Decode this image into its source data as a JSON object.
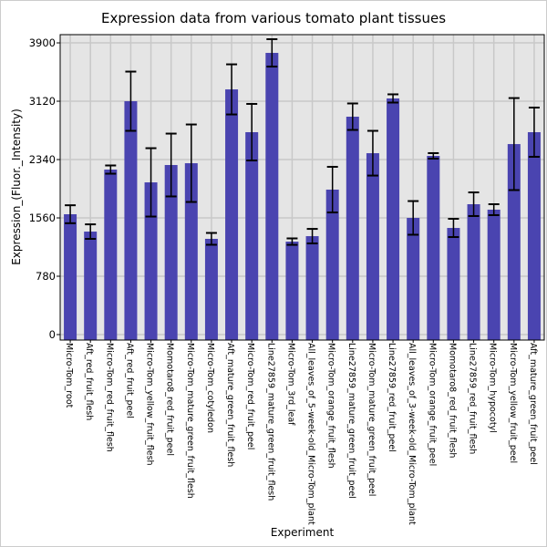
{
  "chart_data": {
    "type": "bar",
    "title": "Expression data from various tomato plant tissues",
    "xlabel": "Experiment",
    "ylabel": "Expression_(Fluor._Intensity)",
    "ylim": [
      -73,
      4010
    ],
    "yticks": [
      0,
      780,
      1560,
      2340,
      3120,
      3900
    ],
    "ytick_labels": [
      "0",
      "780",
      "1560",
      "2340",
      "3120",
      "3900"
    ],
    "grid": true,
    "bar_color": "#4a44b0",
    "background_color": "#e5e5e5",
    "categories": [
      "Micro-Tom_root",
      "Aft_red_fruit_flesh",
      "Micro-Tom_red_fruit_flesh",
      "Aft_red_fruit_peel",
      "Micro-Tom_yellow_fruit_flesh",
      "Momotaro8_red_fruit_peel",
      "Micro-Tom_mature_green_fruit_flesh",
      "Micro-Tom_cotyledon",
      "Aft_mature_green_fruit_flesh",
      "Micro-Tom_red_fruit_peel",
      "Line27859_mature_green_fruit_flesh",
      "Micro-Tom_3rd_leaf",
      "All_leaves_of_5-week-old_Micro-Tom_plant",
      "Micro-Tom_orange_fruit_flesh",
      "Line27859_mature_green_fruit_peel",
      "Micro-Tom_mature_green_fruit_peel",
      "Line27859_red_fruit_peel",
      "All_leaves_of_3-week-old_Micro-Tom_plant",
      "Micro-Tom_orange_fruit_peel",
      "Momotaro8_red_fruit_flesh",
      "Line27859_red_fruit_flesh",
      "Micro-Tom_hypocotyl",
      "Micro-Tom_yellow_fruit_peel",
      "Aft_mature_green_fruit_peel"
    ],
    "values": [
      1609,
      1377,
      2206,
      3120,
      2035,
      2267,
      2291,
      1280,
      3278,
      2706,
      3766,
      1243,
      1316,
      1938,
      2913,
      2425,
      3157,
      1560,
      2389,
      1426,
      1743,
      1670,
      2547,
      2706
    ],
    "errors": [
      120,
      97,
      55,
      396,
      457,
      420,
      518,
      79,
      335,
      378,
      183,
      43,
      97,
      305,
      177,
      299,
      55,
      225,
      37,
      122,
      158,
      73,
      615,
      329
    ]
  }
}
